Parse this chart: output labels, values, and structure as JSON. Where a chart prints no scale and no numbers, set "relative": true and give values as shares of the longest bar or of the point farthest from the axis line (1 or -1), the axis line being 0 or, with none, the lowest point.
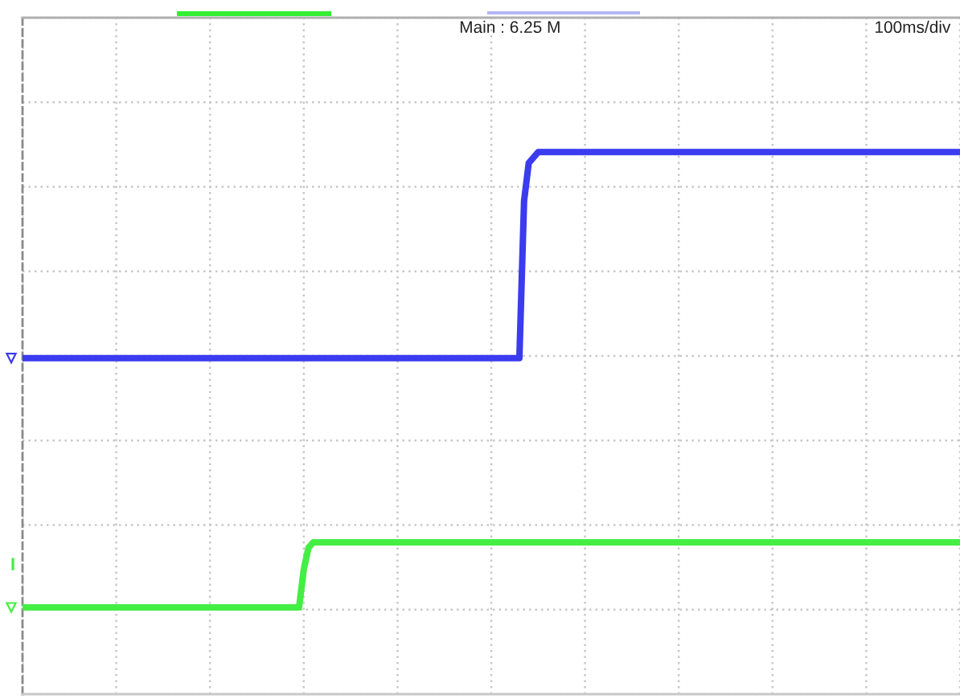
{
  "chart_data": {
    "type": "line",
    "relative": true,
    "grid": true,
    "tick_labels": false,
    "line_style": "solid",
    "annotations": [
      "Main : 6.25 M",
      "100ms/div",
      "I"
    ],
    "categories": [
      null,
      null,
      null,
      null,
      null,
      null,
      null,
      null,
      null,
      null,
      null,
      null,
      null,
      null,
      null,
      null,
      null,
      null,
      null,
      null,
      null,
      null,
      null,
      null,
      null,
      null,
      null,
      null,
      null,
      null,
      null,
      null,
      null,
      null,
      null,
      null,
      null,
      null,
      null,
      null,
      null,
      null,
      null,
      null,
      null,
      null,
      null,
      null,
      null,
      null,
      null,
      null,
      null,
      null,
      null,
      null,
      null,
      null,
      null,
      null,
      null,
      null,
      null,
      null,
      null,
      null,
      null,
      null,
      null,
      null,
      null,
      null,
      null,
      null,
      null,
      null,
      null,
      null,
      null,
      null,
      null,
      null,
      null,
      null,
      null,
      null,
      null,
      null,
      null,
      null,
      null,
      null,
      null,
      null,
      null,
      null,
      null,
      null,
      null,
      null,
      null,
      null,
      null,
      null,
      null,
      null,
      null,
      null,
      null,
      null,
      null,
      null,
      null,
      null,
      null,
      null,
      null,
      null,
      null,
      null,
      null,
      null,
      null,
      null,
      null,
      null,
      null,
      null,
      null,
      null,
      null,
      null,
      null,
      null,
      null,
      null,
      null,
      null,
      null,
      null,
      null,
      null,
      null,
      null,
      null,
      null,
      null,
      null,
      null,
      null,
      null,
      null,
      null,
      null,
      null,
      null,
      null,
      null,
      null,
      null,
      null,
      null,
      null,
      null,
      null,
      null,
      null,
      null,
      null,
      null,
      null,
      null,
      null,
      null,
      null,
      null,
      null,
      null,
      null,
      null,
      null,
      null,
      null,
      null,
      null,
      null,
      null,
      null,
      null,
      null,
      null,
      null,
      null,
      null,
      null,
      null,
      null,
      null,
      null,
      null,
      null
    ],
    "series": [
      {
        "color": "#3b3bef",
        "values": [
          0.62,
          0.62,
          0.62,
          0.62,
          0.62,
          0.62,
          0.62,
          0.62,
          0.62,
          0.62,
          0.62,
          0.62,
          0.62,
          0.62,
          0.62,
          0.62,
          0.62,
          0.62,
          0.62,
          0.62,
          0.62,
          0.62,
          0.62,
          0.62,
          0.62,
          0.62,
          0.62,
          0.62,
          0.62,
          0.62,
          0.62,
          0.62,
          0.62,
          0.62,
          0.62,
          0.62,
          0.62,
          0.62,
          0.62,
          0.62,
          0.62,
          0.62,
          0.62,
          0.62,
          0.62,
          0.62,
          0.62,
          0.62,
          0.62,
          0.62,
          0.62,
          0.62,
          0.62,
          0.62,
          0.62,
          0.62,
          0.62,
          0.62,
          0.62,
          0.62,
          0.62,
          0.62,
          0.62,
          0.62,
          0.62,
          0.62,
          0.62,
          0.62,
          0.62,
          0.62,
          0.62,
          0.62,
          0.62,
          0.62,
          0.62,
          0.62,
          0.62,
          0.62,
          0.62,
          0.62,
          0.62,
          0.62,
          0.62,
          0.62,
          0.62,
          0.62,
          0.62,
          0.62,
          0.62,
          0.62,
          0.62,
          0.62,
          0.62,
          0.62,
          0.62,
          0.62,
          0.62,
          0.62,
          0.62,
          0.62,
          0.62,
          0.62,
          0.62,
          0.62,
          0.62,
          0.62,
          0.62,
          0.91,
          0.98,
          0.99,
          1,
          1,
          1,
          1,
          1,
          1,
          1,
          1,
          1,
          1,
          1,
          1,
          1,
          1,
          1,
          1,
          1,
          1,
          1,
          1,
          1,
          1,
          1,
          1,
          1,
          1,
          1,
          1,
          1,
          1,
          1,
          1,
          1,
          1,
          1,
          1,
          1,
          1,
          1,
          1,
          1,
          1,
          1,
          1,
          1,
          1,
          1,
          1,
          1,
          1,
          1,
          1,
          1,
          1,
          1,
          1,
          1,
          1,
          1,
          1,
          1,
          1,
          1,
          1,
          1,
          1,
          1,
          1,
          1,
          1,
          1,
          1,
          1,
          1,
          1,
          1,
          1,
          1,
          1,
          1,
          1,
          1,
          1,
          1,
          1,
          1,
          1,
          1,
          1,
          1,
          1
        ]
      },
      {
        "color": "#44ee44",
        "values": [
          0.16,
          0.16,
          0.16,
          0.16,
          0.16,
          0.16,
          0.16,
          0.16,
          0.16,
          0.16,
          0.16,
          0.16,
          0.16,
          0.16,
          0.16,
          0.16,
          0.16,
          0.16,
          0.16,
          0.16,
          0.16,
          0.16,
          0.16,
          0.16,
          0.16,
          0.16,
          0.16,
          0.16,
          0.16,
          0.16,
          0.16,
          0.16,
          0.16,
          0.16,
          0.16,
          0.16,
          0.16,
          0.16,
          0.16,
          0.16,
          0.16,
          0.16,
          0.16,
          0.16,
          0.16,
          0.16,
          0.16,
          0.16,
          0.16,
          0.16,
          0.16,
          0.16,
          0.16,
          0.16,
          0.16,
          0.16,
          0.16,
          0.16,
          0.16,
          0.16,
          0.23,
          0.27,
          0.28,
          0.28,
          0.28,
          0.28,
          0.28,
          0.28,
          0.28,
          0.28,
          0.28,
          0.28,
          0.28,
          0.28,
          0.28,
          0.28,
          0.28,
          0.28,
          0.28,
          0.28,
          0.28,
          0.28,
          0.28,
          0.28,
          0.28,
          0.28,
          0.28,
          0.28,
          0.28,
          0.28,
          0.28,
          0.28,
          0.28,
          0.28,
          0.28,
          0.28,
          0.28,
          0.28,
          0.28,
          0.28,
          0.28,
          0.28,
          0.28,
          0.28,
          0.28,
          0.28,
          0.28,
          0.28,
          0.28,
          0.28,
          0.28,
          0.28,
          0.28,
          0.28,
          0.28,
          0.28,
          0.28,
          0.28,
          0.28,
          0.28,
          0.28,
          0.28,
          0.28,
          0.28,
          0.28,
          0.28,
          0.28,
          0.28,
          0.28,
          0.28,
          0.28,
          0.28,
          0.28,
          0.28,
          0.28,
          0.28,
          0.28,
          0.28,
          0.28,
          0.28,
          0.28,
          0.28,
          0.28,
          0.28,
          0.28,
          0.28,
          0.28,
          0.28,
          0.28,
          0.28,
          0.28,
          0.28,
          0.28,
          0.28,
          0.28,
          0.28,
          0.28,
          0.28,
          0.28,
          0.28,
          0.28,
          0.28,
          0.28,
          0.28,
          0.28,
          0.28,
          0.28,
          0.28,
          0.28,
          0.28,
          0.28,
          0.28,
          0.28,
          0.28,
          0.28,
          0.28,
          0.28,
          0.28,
          0.28,
          0.28,
          0.28,
          0.28,
          0.28,
          0.28,
          0.28,
          0.28,
          0.28,
          0.28,
          0.28,
          0.28,
          0.28,
          0.28,
          0.28,
          0.28,
          0.28,
          0.28,
          0.28,
          0.28,
          0.28,
          0.28,
          0.28
        ]
      }
    ]
  }
}
